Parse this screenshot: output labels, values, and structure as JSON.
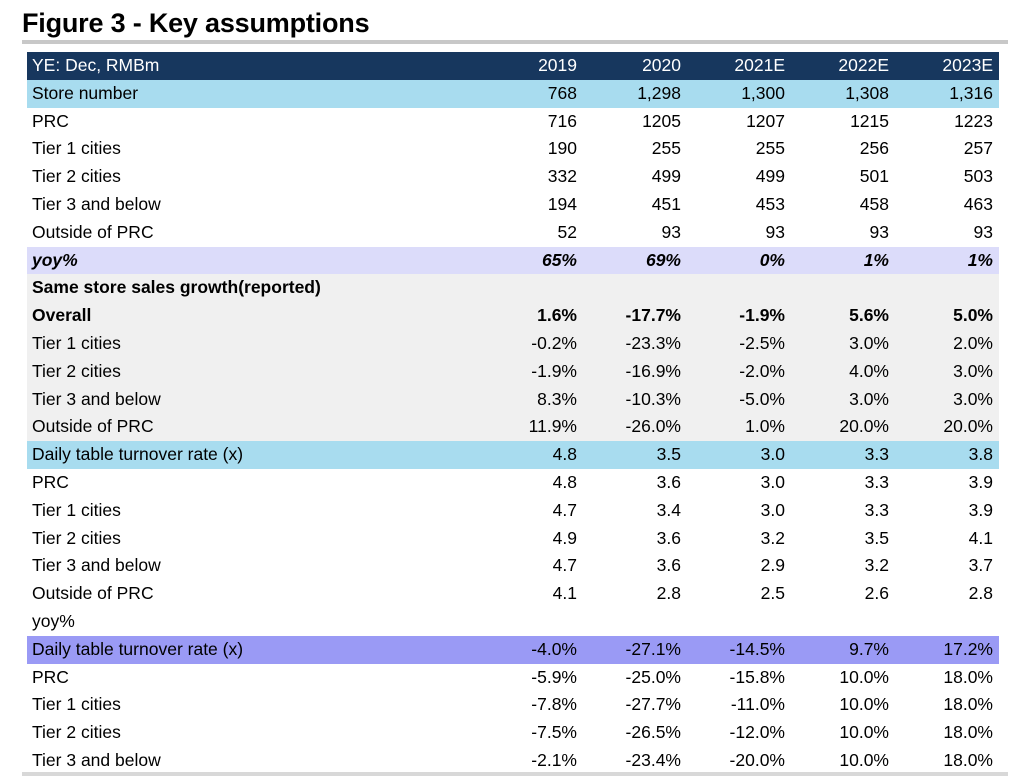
{
  "title": "Figure 3 - Key assumptions",
  "header": [
    "YE: Dec, RMBm",
    "2019",
    "2020",
    "2021E",
    "2022E",
    "2023E"
  ],
  "rows": [
    {
      "style": "blue",
      "cells": [
        "Store number",
        "768",
        "1,298",
        "1,300",
        "1,308",
        "1,316"
      ]
    },
    {
      "style": "white",
      "cells": [
        "PRC",
        "716",
        "1205",
        "1207",
        "1215",
        "1223"
      ]
    },
    {
      "style": "white",
      "cells": [
        "Tier 1 cities",
        "190",
        "255",
        "255",
        "256",
        "257"
      ]
    },
    {
      "style": "white",
      "cells": [
        "Tier 2 cities",
        "332",
        "499",
        "499",
        "501",
        "503"
      ]
    },
    {
      "style": "white",
      "cells": [
        "Tier 3 and below",
        "194",
        "451",
        "453",
        "458",
        "463"
      ]
    },
    {
      "style": "white",
      "cells": [
        "Outside of PRC",
        "52",
        "93",
        "93",
        "93",
        "93"
      ]
    },
    {
      "style": "lav bold italic",
      "cells": [
        "yoy%",
        "65%",
        "69%",
        "0%",
        "1%",
        "1%"
      ]
    },
    {
      "style": "grey bold",
      "cells": [
        "Same store sales growth(reported)",
        "",
        "",
        "",
        "",
        ""
      ]
    },
    {
      "style": "grey bold",
      "cells": [
        "Overall",
        "1.6%",
        "-17.7%",
        "-1.9%",
        "5.6%",
        "5.0%"
      ]
    },
    {
      "style": "grey",
      "cells": [
        "Tier 1 cities",
        "-0.2%",
        "-23.3%",
        "-2.5%",
        "3.0%",
        "2.0%"
      ]
    },
    {
      "style": "grey",
      "cells": [
        "Tier 2 cities",
        "-1.9%",
        "-16.9%",
        "-2.0%",
        "4.0%",
        "3.0%"
      ]
    },
    {
      "style": "grey",
      "cells": [
        "Tier 3 and below",
        "8.3%",
        "-10.3%",
        "-5.0%",
        "3.0%",
        "3.0%"
      ]
    },
    {
      "style": "grey",
      "cells": [
        "Outside of PRC",
        "11.9%",
        "-26.0%",
        "1.0%",
        "20.0%",
        "20.0%"
      ]
    },
    {
      "style": "blue",
      "cells": [
        "Daily table turnover rate (x)",
        "4.8",
        "3.5",
        "3.0",
        "3.3",
        "3.8"
      ]
    },
    {
      "style": "white",
      "cells": [
        "PRC",
        "4.8",
        "3.6",
        "3.0",
        "3.3",
        "3.9"
      ]
    },
    {
      "style": "white",
      "cells": [
        "Tier 1 cities",
        "4.7",
        "3.4",
        "3.0",
        "3.3",
        "3.9"
      ]
    },
    {
      "style": "white",
      "cells": [
        "Tier 2 cities",
        "4.9",
        "3.6",
        "3.2",
        "3.5",
        "4.1"
      ]
    },
    {
      "style": "white",
      "cells": [
        "Tier 3 and below",
        "4.7",
        "3.6",
        "2.9",
        "3.2",
        "3.7"
      ]
    },
    {
      "style": "white",
      "cells": [
        "Outside of PRC",
        "4.1",
        "2.8",
        "2.5",
        "2.6",
        "2.8"
      ]
    },
    {
      "style": "white",
      "cells": [
        "yoy%",
        "",
        "",
        "",
        "",
        ""
      ]
    },
    {
      "style": "purple",
      "cells": [
        "Daily table turnover rate (x)",
        "-4.0%",
        "-27.1%",
        "-14.5%",
        "9.7%",
        "17.2%"
      ]
    },
    {
      "style": "white",
      "cells": [
        "PRC",
        "-5.9%",
        "-25.0%",
        "-15.8%",
        "10.0%",
        "18.0%"
      ]
    },
    {
      "style": "white",
      "cells": [
        "Tier 1 cities",
        "-7.8%",
        "-27.7%",
        "-11.0%",
        "10.0%",
        "18.0%"
      ]
    },
    {
      "style": "white",
      "cells": [
        "Tier 2 cities",
        "-7.5%",
        "-26.5%",
        "-12.0%",
        "10.0%",
        "18.0%"
      ]
    },
    {
      "style": "white",
      "cells": [
        "Tier 3 and below",
        "-2.1%",
        "-23.4%",
        "-20.0%",
        "10.0%",
        "18.0%"
      ]
    }
  ]
}
